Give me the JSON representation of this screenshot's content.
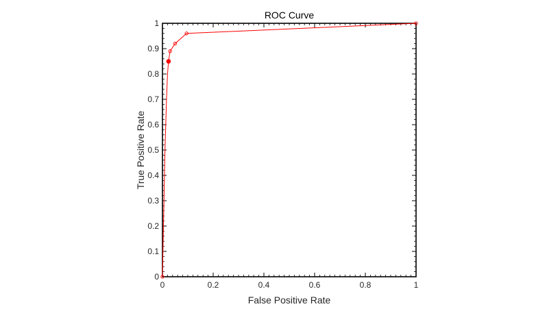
{
  "chart_data": {
    "type": "line",
    "title": "ROC Curve",
    "xlabel": "False Positive Rate",
    "ylabel": "True Positive Rate",
    "xlim": [
      0,
      1
    ],
    "ylim": [
      0,
      1
    ],
    "xticks": [
      0,
      0.2,
      0.4,
      0.6,
      0.8,
      1
    ],
    "xtick_labels": [
      "0",
      "0.2",
      "0.4",
      "0.6",
      "0.8",
      "1"
    ],
    "yticks": [
      0,
      0.1,
      0.2,
      0.3,
      0.4,
      0.5,
      0.6,
      0.7,
      0.8,
      0.9,
      1
    ],
    "ytick_labels": [
      "0",
      "0.1",
      "0.2",
      "0.3",
      "0.4",
      "0.5",
      "0.6",
      "0.7",
      "0.8",
      "0.9",
      "1"
    ],
    "grid": false,
    "series": [
      {
        "color": "#ff0000",
        "x": [
          0,
          0.002,
          0.004,
          0.006,
          0.008,
          0.01,
          0.013,
          0.016,
          0.02,
          0.024,
          0.03,
          0.05,
          0.095,
          1.0
        ],
        "y": [
          0,
          0.1,
          0.2,
          0.3,
          0.4,
          0.5,
          0.6,
          0.7,
          0.8,
          0.85,
          0.89,
          0.92,
          0.96,
          1.0
        ]
      }
    ],
    "markers": [
      {
        "x": 0.024,
        "y": 0.85,
        "filled": true
      },
      {
        "x": 0.03,
        "y": 0.89,
        "filled": false
      },
      {
        "x": 0.05,
        "y": 0.92,
        "filled": false
      },
      {
        "x": 0.095,
        "y": 0.96,
        "filled": false
      },
      {
        "x": 1.0,
        "y": 1.0,
        "filled": false
      },
      {
        "x": 0.0,
        "y": 0.0,
        "filled": false
      }
    ]
  }
}
